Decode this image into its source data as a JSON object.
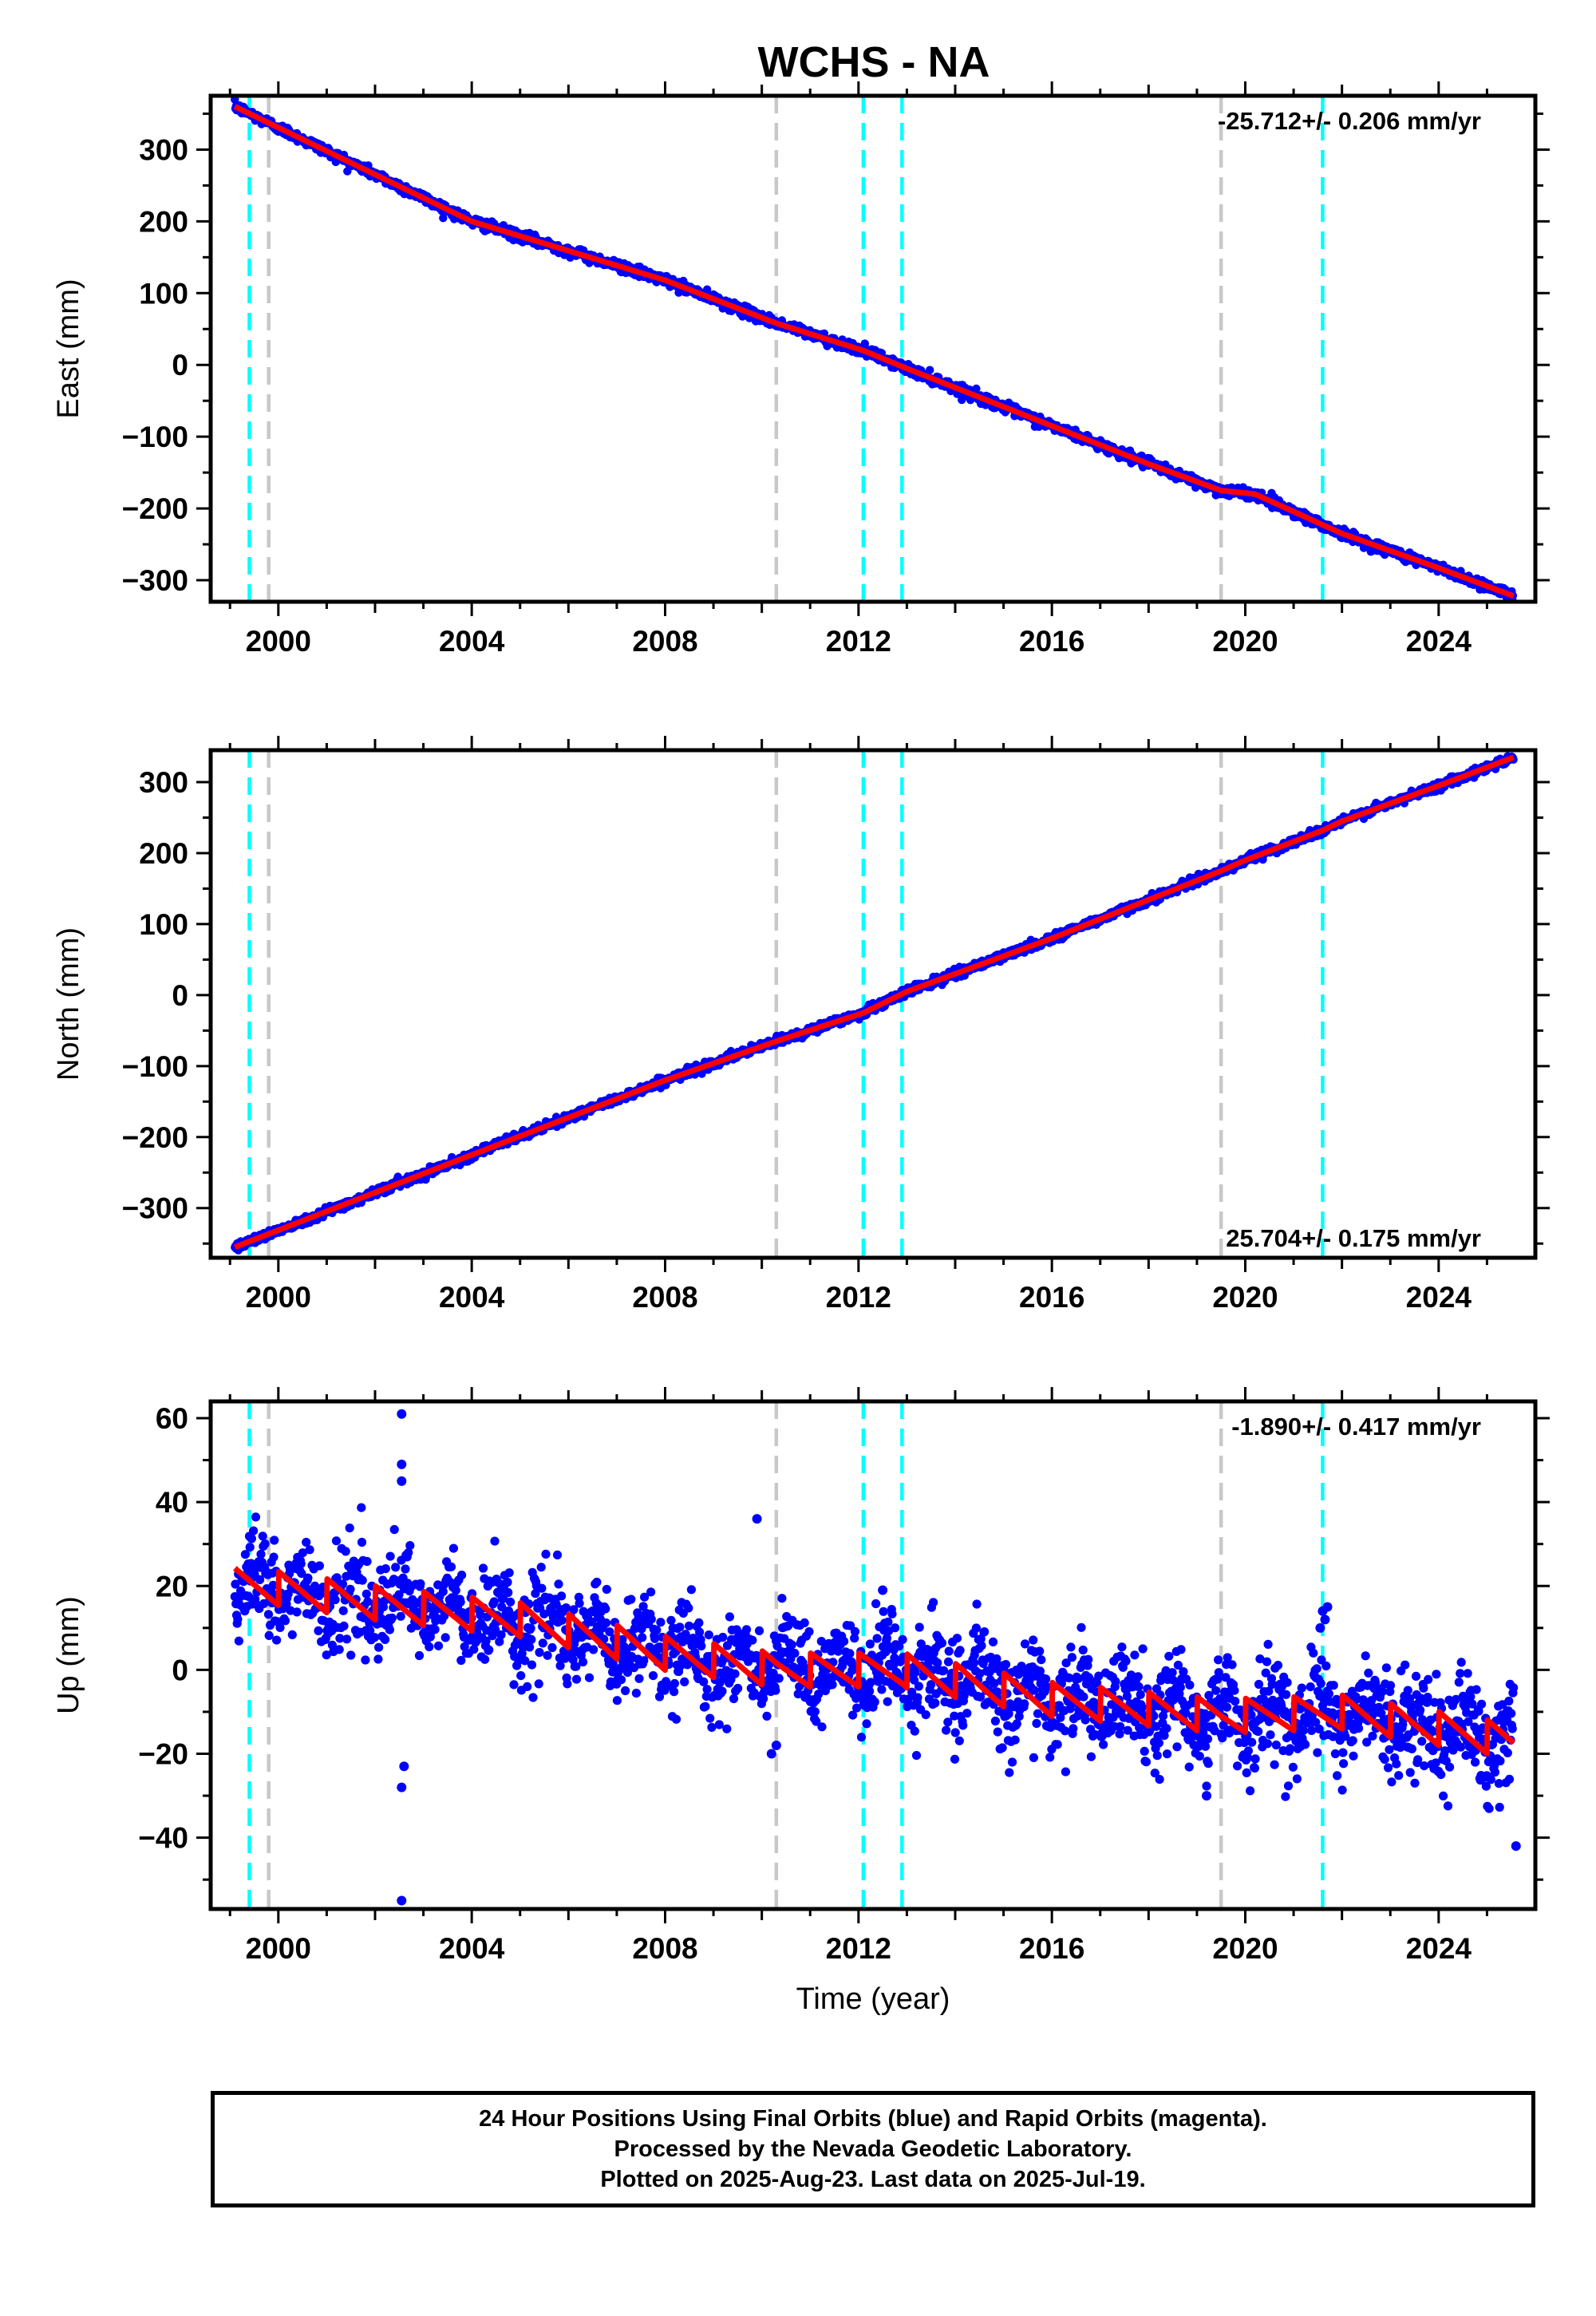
{
  "figure": {
    "title": "WCHS - NA",
    "xlabel": "Time (year)"
  },
  "colors": {
    "data_points": "#0000ff",
    "model_line": "#ff0000",
    "antenna_change_lines": "#00ffff",
    "equipment_change_lines": "#c8c8c8",
    "background": "#ffffff"
  },
  "chart_data": [
    {
      "type": "scatter",
      "name": "east",
      "ylabel": "East (mm)",
      "xlim": [
        1998.6,
        2026.0
      ],
      "ylim": [
        -330,
        375
      ],
      "xticks": [
        2000,
        2004,
        2008,
        2012,
        2016,
        2020,
        2024
      ],
      "yticks": [
        -300,
        -200,
        -100,
        0,
        100,
        200,
        300
      ],
      "rate_label": "-25.712+/- 0.206 mm/yr",
      "rate_position": "top-right",
      "x_start": 1999.1,
      "x_end": 2025.55,
      "y_start": 360,
      "y_end": -322,
      "trend": [
        [
          1999.1,
          360
        ],
        [
          2004,
          200
        ],
        [
          2008,
          118
        ],
        [
          2010.3,
          58
        ],
        [
          2012.1,
          20
        ],
        [
          2013,
          -5
        ],
        [
          2016,
          -85
        ],
        [
          2018,
          -138
        ],
        [
          2019.5,
          -175
        ],
        [
          2020.2,
          -180
        ],
        [
          2022,
          -235
        ],
        [
          2024,
          -283
        ],
        [
          2025.55,
          -322
        ]
      ],
      "noise_mm": 3.5,
      "vertical_lines": [
        {
          "x": 1999.4,
          "kind": "antenna"
        },
        {
          "x": 1999.8,
          "kind": "equipment"
        },
        {
          "x": 2010.3,
          "kind": "equipment"
        },
        {
          "x": 2012.1,
          "kind": "antenna"
        },
        {
          "x": 2012.9,
          "kind": "antenna"
        },
        {
          "x": 2019.5,
          "kind": "equipment"
        },
        {
          "x": 2021.6,
          "kind": "antenna"
        }
      ]
    },
    {
      "type": "scatter",
      "name": "north",
      "ylabel": "North (mm)",
      "xlim": [
        1998.6,
        2026.0
      ],
      "ylim": [
        -370,
        345
      ],
      "xticks": [
        2000,
        2004,
        2008,
        2012,
        2016,
        2020,
        2024
      ],
      "yticks": [
        -300,
        -200,
        -100,
        0,
        100,
        200,
        300
      ],
      "rate_label": "25.704+/- 0.175 mm/yr",
      "rate_position": "bottom-right",
      "x_start": 1999.1,
      "x_end": 2025.55,
      "y_start": -355,
      "y_end": 335,
      "trend": [
        [
          1999.1,
          -355
        ],
        [
          2004,
          -225
        ],
        [
          2008,
          -120
        ],
        [
          2010.3,
          -65
        ],
        [
          2012.1,
          -25
        ],
        [
          2013,
          5
        ],
        [
          2016,
          80
        ],
        [
          2019.5,
          175
        ],
        [
          2020,
          190
        ],
        [
          2021.6,
          232
        ],
        [
          2022,
          245
        ],
        [
          2024,
          295
        ],
        [
          2025.55,
          335
        ]
      ],
      "noise_mm": 3,
      "vertical_lines": [
        {
          "x": 1999.4,
          "kind": "antenna"
        },
        {
          "x": 1999.8,
          "kind": "equipment"
        },
        {
          "x": 2010.3,
          "kind": "equipment"
        },
        {
          "x": 2012.1,
          "kind": "antenna"
        },
        {
          "x": 2012.9,
          "kind": "antenna"
        },
        {
          "x": 2019.5,
          "kind": "equipment"
        },
        {
          "x": 2021.6,
          "kind": "antenna"
        }
      ]
    },
    {
      "type": "scatter",
      "name": "up",
      "ylabel": "Up (mm)",
      "xlim": [
        1998.6,
        2026.0
      ],
      "ylim": [
        -57,
        64
      ],
      "xticks": [
        2000,
        2004,
        2008,
        2012,
        2016,
        2020,
        2024
      ],
      "yticks": [
        -40,
        -20,
        0,
        20,
        40,
        60
      ],
      "rate_label": "-1.890+/- 0.417 mm/yr",
      "rate_position": "top-right",
      "x_start": 1999.1,
      "x_end": 2025.55,
      "trend": [
        [
          1999.1,
          21
        ],
        [
          2002.0,
          16
        ],
        [
          2005.0,
          12
        ],
        [
          2008.0,
          4
        ],
        [
          2010.3,
          0
        ],
        [
          2012.9,
          0
        ],
        [
          2016.0,
          -7
        ],
        [
          2019.5,
          -11
        ],
        [
          2022.0,
          -10
        ],
        [
          2025.55,
          -17
        ]
      ],
      "seasonal_amplitude_mm": 4.5,
      "noise_mm": 5.5,
      "outliers": [
        [
          2002.55,
          61
        ],
        [
          2002.55,
          49
        ],
        [
          2002.55,
          45
        ],
        [
          2002.55,
          -28
        ],
        [
          2002.55,
          -55
        ],
        [
          2002.6,
          -23
        ],
        [
          2009.9,
          36
        ],
        [
          2010.2,
          -20
        ],
        [
          2010.3,
          -18
        ],
        [
          2021.6,
          14
        ],
        [
          2021.65,
          12
        ],
        [
          2021.55,
          10
        ],
        [
          2021.7,
          15
        ],
        [
          2025.6,
          -42
        ],
        [
          2012.5,
          19
        ],
        [
          2019.2,
          -30
        ]
      ],
      "vertical_lines": [
        {
          "x": 1999.4,
          "kind": "antenna"
        },
        {
          "x": 1999.8,
          "kind": "equipment"
        },
        {
          "x": 2010.3,
          "kind": "equipment"
        },
        {
          "x": 2012.1,
          "kind": "antenna"
        },
        {
          "x": 2012.9,
          "kind": "antenna"
        },
        {
          "x": 2019.5,
          "kind": "equipment"
        },
        {
          "x": 2021.6,
          "kind": "antenna"
        }
      ]
    }
  ],
  "footer": {
    "line1": "24 Hour Positions Using Final Orbits (blue) and Rapid Orbits (magenta).",
    "line2": "Processed by the Nevada Geodetic Laboratory.",
    "line3": "Plotted on 2025-Aug-23. Last data on 2025-Jul-19."
  }
}
